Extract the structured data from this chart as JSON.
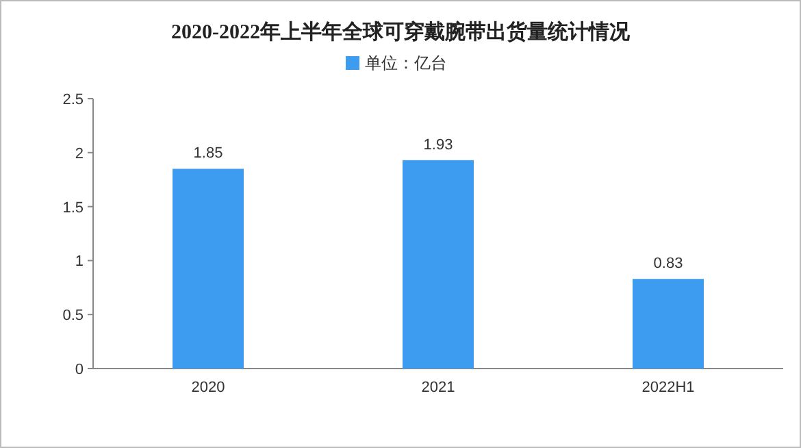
{
  "chart_data": {
    "type": "bar",
    "title": "2020-2022年上半年全球可穿戴腕带出货量统计情况",
    "categories": [
      "2020",
      "2021",
      "2022H1"
    ],
    "series": [
      {
        "name": "单位：亿台",
        "color": "#3d9bf0",
        "values": [
          1.85,
          1.93,
          0.83
        ]
      }
    ],
    "ylim": [
      0,
      2.5
    ],
    "yticks": [
      0,
      0.5,
      1,
      1.5,
      2,
      2.5
    ],
    "data_labels": true,
    "legend": "top",
    "grid": false
  }
}
